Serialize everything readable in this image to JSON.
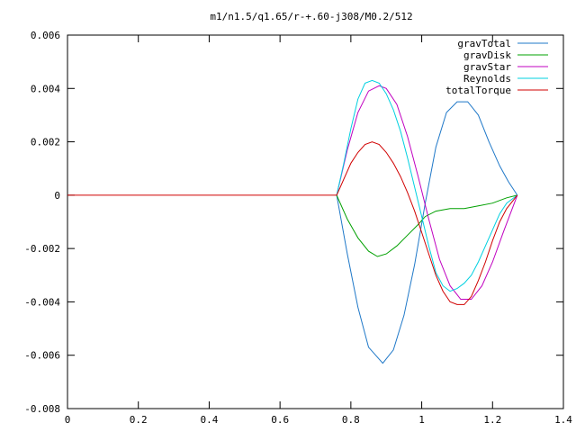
{
  "chart_data": {
    "type": "line",
    "title": "m1/n1.5/q1.65/r-+.60-j308/M0.2/512",
    "xlabel": "",
    "ylabel": "",
    "xlim": [
      0,
      1.4
    ],
    "ylim": [
      -0.008,
      0.006
    ],
    "x_ticks": [
      {
        "value": 0,
        "label": "0"
      },
      {
        "value": 0.2,
        "label": "0.2"
      },
      {
        "value": 0.4,
        "label": "0.4"
      },
      {
        "value": 0.6,
        "label": "0.6"
      },
      {
        "value": 0.8,
        "label": "0.8"
      },
      {
        "value": 1.0,
        "label": "1"
      },
      {
        "value": 1.2,
        "label": "1.2"
      },
      {
        "value": 1.4,
        "label": "1.4"
      }
    ],
    "y_ticks": [
      {
        "value": 0.006,
        "label": "0.006"
      },
      {
        "value": 0.004,
        "label": "0.004"
      },
      {
        "value": 0.002,
        "label": "0.002"
      },
      {
        "value": 0,
        "label": "0"
      },
      {
        "value": -0.002,
        "label": "-0.002"
      },
      {
        "value": -0.004,
        "label": "-0.004"
      },
      {
        "value": -0.006,
        "label": "-0.006"
      },
      {
        "value": -0.008,
        "label": "-0.008"
      }
    ],
    "grid": false,
    "legend_position": "top-right",
    "series": [
      {
        "name": "gravTotal",
        "color": "#1f78c8",
        "x": [
          0.76,
          0.79,
          0.82,
          0.85,
          0.89,
          0.92,
          0.95,
          0.98,
          1.01,
          1.04,
          1.07,
          1.1,
          1.13,
          1.16,
          1.19,
          1.22,
          1.245,
          1.27
        ],
        "y": [
          0.0,
          -0.0022,
          -0.0042,
          -0.0057,
          -0.0063,
          -0.0058,
          -0.0045,
          -0.0026,
          -0.0003,
          0.0018,
          0.0031,
          0.0035,
          0.0035,
          0.003,
          0.002,
          0.0011,
          0.0005,
          0.0
        ]
      },
      {
        "name": "gravDisk",
        "color": "#00a000",
        "x": [
          0.76,
          0.79,
          0.82,
          0.85,
          0.875,
          0.9,
          0.93,
          0.96,
          0.99,
          1.01,
          1.04,
          1.08,
          1.12,
          1.16,
          1.2,
          1.24,
          1.27
        ],
        "y": [
          0.0,
          -0.0009,
          -0.0016,
          -0.0021,
          -0.0023,
          -0.0022,
          -0.0019,
          -0.0015,
          -0.0011,
          -0.0008,
          -0.0006,
          -0.0005,
          -0.0005,
          -0.0004,
          -0.0003,
          -0.0001,
          0.0
        ]
      },
      {
        "name": "gravStar",
        "color": "#c000c0",
        "x": [
          0.76,
          0.79,
          0.82,
          0.85,
          0.88,
          0.9,
          0.93,
          0.96,
          0.99,
          1.02,
          1.05,
          1.08,
          1.11,
          1.14,
          1.17,
          1.2,
          1.23,
          1.27
        ],
        "y": [
          0.0,
          0.0017,
          0.0031,
          0.0039,
          0.0041,
          0.004,
          0.0034,
          0.0022,
          0.0007,
          -0.0009,
          -0.0024,
          -0.0034,
          -0.0039,
          -0.0039,
          -0.0034,
          -0.0025,
          -0.0014,
          0.0
        ]
      },
      {
        "name": "Reynolds",
        "color": "#00d0e0",
        "x": [
          0.76,
          0.78,
          0.8,
          0.82,
          0.84,
          0.86,
          0.88,
          0.9,
          0.92,
          0.94,
          0.96,
          0.98,
          1.0,
          1.02,
          1.04,
          1.06,
          1.08,
          1.1,
          1.12,
          1.14,
          1.16,
          1.18,
          1.2,
          1.22,
          1.24,
          1.27
        ],
        "y": [
          0.0,
          0.0012,
          0.0025,
          0.0036,
          0.0042,
          0.0043,
          0.0042,
          0.0038,
          0.0032,
          0.0024,
          0.0014,
          0.0003,
          -0.0008,
          -0.0019,
          -0.0029,
          -0.0034,
          -0.0036,
          -0.0035,
          -0.0033,
          -0.003,
          -0.0025,
          -0.0019,
          -0.0013,
          -0.0007,
          -0.0003,
          0.0
        ]
      },
      {
        "name": "totalTorque",
        "color": "#d00000",
        "x": [
          0.0,
          0.76,
          0.78,
          0.8,
          0.82,
          0.84,
          0.86,
          0.88,
          0.9,
          0.92,
          0.94,
          0.96,
          0.98,
          1.0,
          1.02,
          1.04,
          1.06,
          1.08,
          1.1,
          1.12,
          1.14,
          1.16,
          1.18,
          1.2,
          1.22,
          1.24,
          1.27
        ],
        "y": [
          0.0,
          0.0,
          0.0006,
          0.0012,
          0.0016,
          0.0019,
          0.002,
          0.0019,
          0.0016,
          0.0012,
          0.0007,
          0.0001,
          -0.0006,
          -0.0014,
          -0.0022,
          -0.003,
          -0.0036,
          -0.004,
          -0.0041,
          -0.0041,
          -0.0038,
          -0.0032,
          -0.0025,
          -0.0017,
          -0.001,
          -0.0005,
          0.0
        ]
      }
    ]
  }
}
